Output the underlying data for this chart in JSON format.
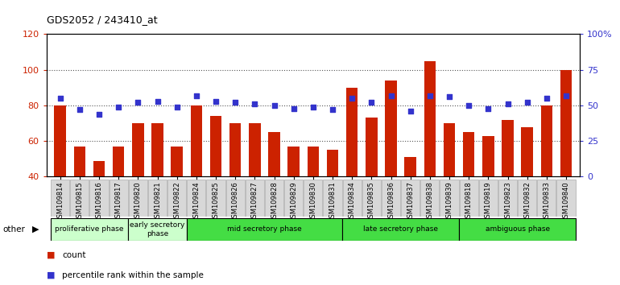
{
  "title": "GDS2052 / 243410_at",
  "samples": [
    "GSM109814",
    "GSM109815",
    "GSM109816",
    "GSM109817",
    "GSM109820",
    "GSM109821",
    "GSM109822",
    "GSM109824",
    "GSM109825",
    "GSM109826",
    "GSM109827",
    "GSM109828",
    "GSM109829",
    "GSM109830",
    "GSM109831",
    "GSM109834",
    "GSM109835",
    "GSM109836",
    "GSM109837",
    "GSM109838",
    "GSM109839",
    "GSM109818",
    "GSM109819",
    "GSM109823",
    "GSM109832",
    "GSM109833",
    "GSM109840"
  ],
  "counts": [
    80,
    57,
    49,
    57,
    70,
    70,
    57,
    80,
    74,
    70,
    70,
    65,
    57,
    57,
    55,
    90,
    73,
    94,
    51,
    105,
    70,
    65,
    63,
    72,
    68,
    80,
    100
  ],
  "percentile_ranks": [
    55,
    47,
    44,
    49,
    52,
    53,
    49,
    57,
    53,
    52,
    51,
    50,
    48,
    49,
    47,
    55,
    52,
    57,
    46,
    57,
    56,
    50,
    48,
    51,
    52,
    55,
    57
  ],
  "phases": [
    {
      "label": "proliferative phase",
      "start": 0,
      "end": 4,
      "color": "#ccffcc"
    },
    {
      "label": "early secretory\nphase",
      "start": 4,
      "end": 7,
      "color": "#ccffcc"
    },
    {
      "label": "mid secretory phase",
      "start": 7,
      "end": 15,
      "color": "#44dd44"
    },
    {
      "label": "late secretory phase",
      "start": 15,
      "end": 21,
      "color": "#44dd44"
    },
    {
      "label": "ambiguous phase",
      "start": 21,
      "end": 27,
      "color": "#44dd44"
    }
  ],
  "ylim_left": [
    40,
    120
  ],
  "ylim_right": [
    0,
    100
  ],
  "yticks_left": [
    40,
    60,
    80,
    100,
    120
  ],
  "yticks_right": [
    0,
    25,
    50,
    75,
    100
  ],
  "ytick_labels_right": [
    "0",
    "25",
    "50",
    "75",
    "100%"
  ],
  "bar_color": "#cc2200",
  "dot_color": "#3333cc",
  "grid_color": "#555555",
  "bg_color": "#ffffff",
  "other_label": "other"
}
